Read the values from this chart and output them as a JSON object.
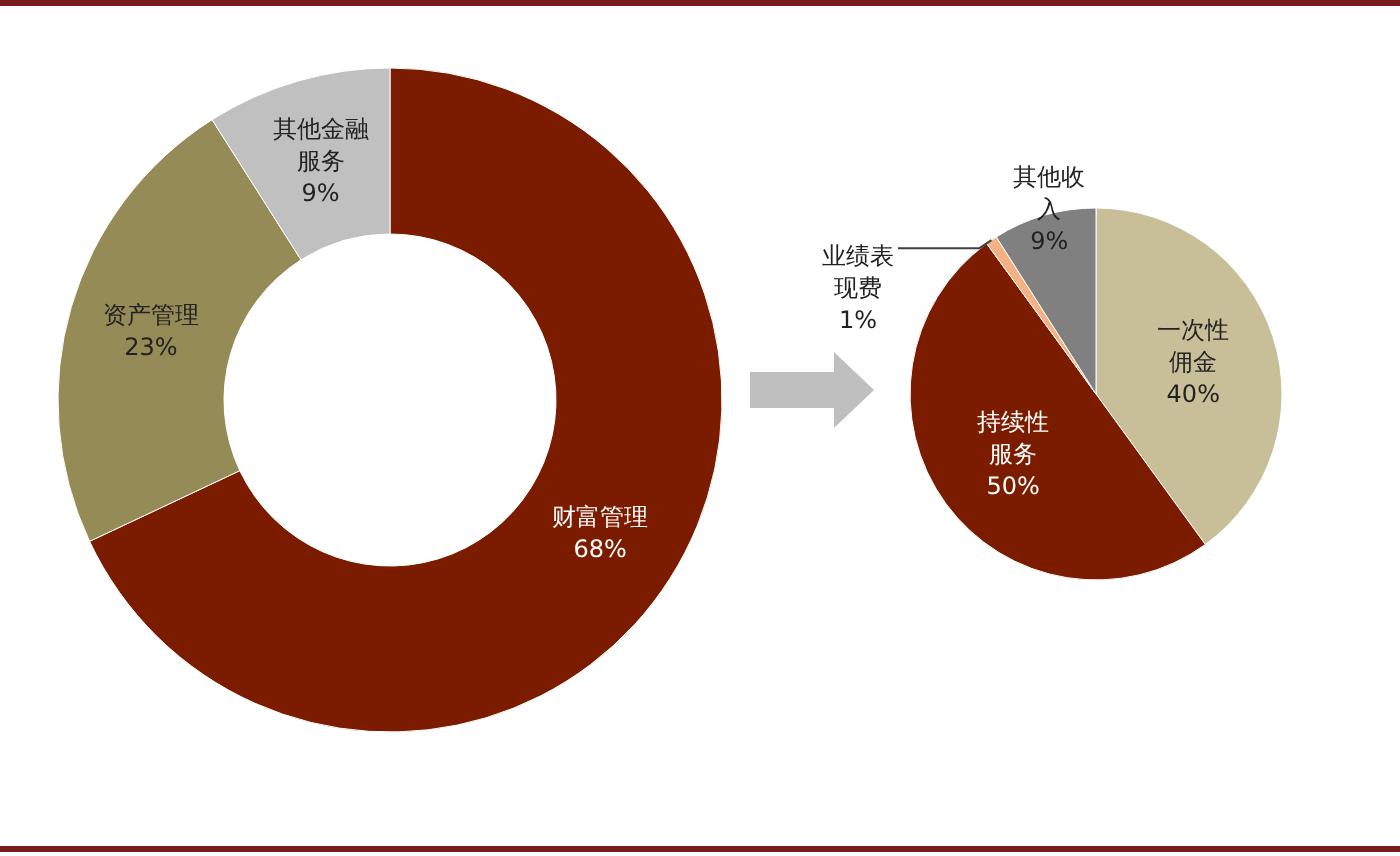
{
  "chart_data": [
    {
      "type": "donut",
      "categories": [
        "财富管理",
        "资产管理",
        "其他金融服务"
      ],
      "values": [
        68,
        23,
        9
      ],
      "colors": [
        "#7b1c00",
        "#958b57",
        "#c0c0c0"
      ],
      "value_labels": [
        "68%",
        "23%",
        "9%"
      ]
    },
    {
      "type": "pie",
      "categories": [
        "一次性佣金",
        "持续性服务",
        "业绩表现费",
        "其他收入"
      ],
      "values": [
        40,
        50,
        1,
        9
      ],
      "colors": [
        "#c8bf99",
        "#7b1c00",
        "#f4b183",
        "#808080"
      ],
      "value_labels": [
        "40%",
        "50%",
        "1%",
        "9%"
      ]
    }
  ]
}
